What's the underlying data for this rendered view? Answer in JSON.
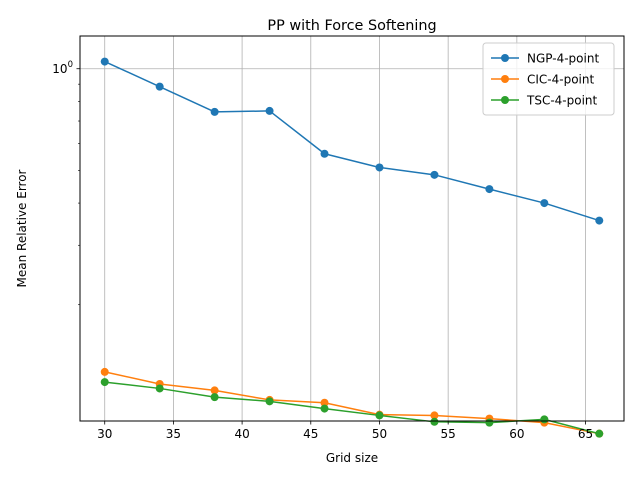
{
  "chart_data": {
    "type": "line",
    "title": "PP with Force Softening",
    "xlabel": "Grid size",
    "ylabel": "Mean Relative Error",
    "x": [
      30,
      34,
      38,
      42,
      46,
      50,
      54,
      58,
      62,
      66
    ],
    "xlim": [
      28.2,
      67.8
    ],
    "ylim": [
      0.0905,
      1.25
    ],
    "yscale": "log",
    "grid": true,
    "legend_position": "top-right",
    "x_ticks": [
      30,
      35,
      40,
      45,
      50,
      55,
      60,
      65
    ],
    "x_tick_labels": [
      "30",
      "35",
      "40",
      "45",
      "50",
      "55",
      "60",
      "65"
    ],
    "y_major_tick": {
      "value": 1.0,
      "base": "10",
      "exponent": "0"
    },
    "series": [
      {
        "name": "NGP-4-point",
        "color": "#1f77b4",
        "values": [
          1.05,
          0.885,
          0.745,
          0.75,
          0.56,
          0.51,
          0.485,
          0.44,
          0.4,
          0.355
        ]
      },
      {
        "name": "CIC-4-point",
        "color": "#ff7f0e",
        "values": [
          0.1265,
          0.1165,
          0.1115,
          0.1045,
          0.1025,
          0.0945,
          0.094,
          0.092,
          0.0895,
          0.083
        ]
      },
      {
        "name": "TSC-4-point",
        "color": "#2ca02c",
        "values": [
          0.118,
          0.113,
          0.1065,
          0.1035,
          0.0985,
          0.094,
          0.09,
          0.0895,
          0.0915,
          0.083
        ]
      }
    ]
  }
}
